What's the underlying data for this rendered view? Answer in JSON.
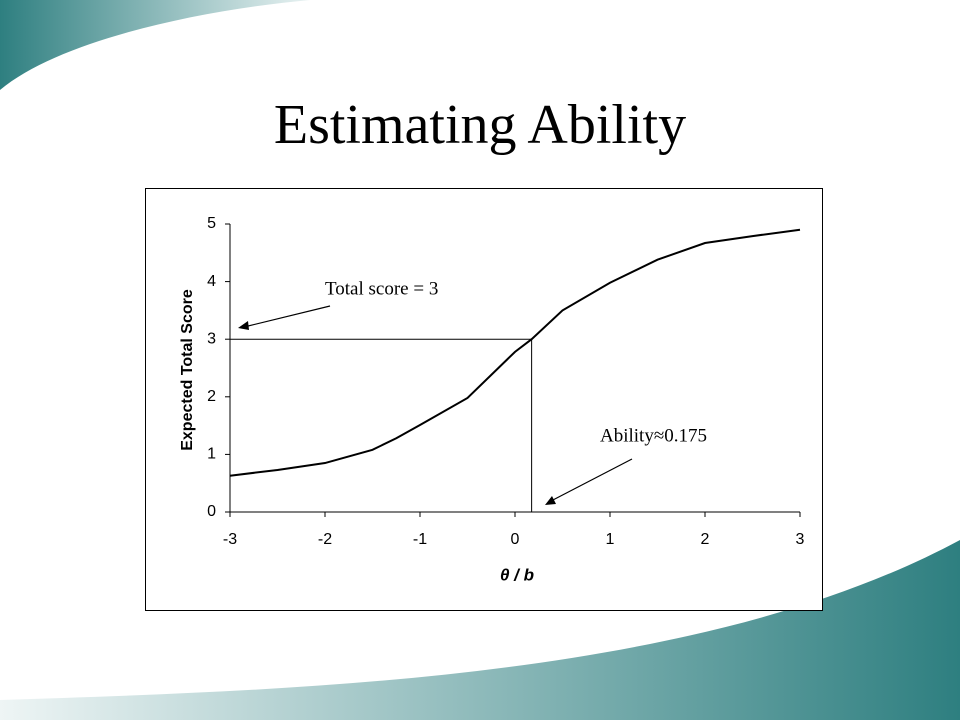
{
  "chart_data": {
    "type": "line",
    "title": "Estimating Ability",
    "x_label": "θ / b",
    "y_label": "Expected Total Score",
    "x": [
      -3,
      -2.5,
      -2,
      -1.5,
      -1.25,
      -1,
      -0.5,
      0,
      0.175,
      0.5,
      1,
      1.5,
      2,
      2.5,
      3
    ],
    "values": [
      0.63,
      0.73,
      0.85,
      1.08,
      1.28,
      1.51,
      1.98,
      2.78,
      3,
      3.5,
      3.98,
      4.38,
      4.67,
      4.79,
      4.9
    ],
    "color": "#000000",
    "xlim": [
      -3,
      3
    ],
    "xticks": [
      -3,
      -2,
      -1,
      0,
      1,
      2,
      3
    ],
    "ylim": [
      0,
      5
    ],
    "yticks": [
      0,
      1,
      2,
      3,
      4,
      5
    ],
    "reference_x": 0.175,
    "reference_y": 3,
    "annotations": [
      "Total score = 3",
      "Ability≈0.175"
    ]
  }
}
